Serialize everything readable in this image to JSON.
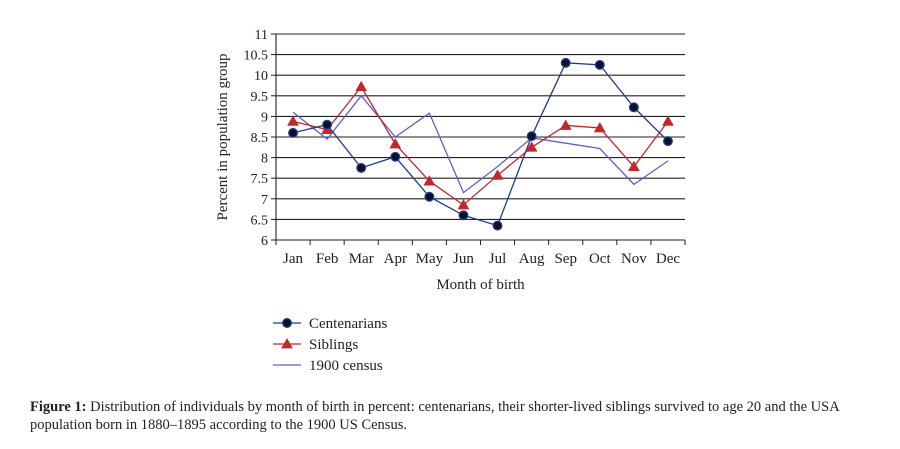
{
  "chart_data": {
    "type": "line",
    "xlabel": "Month of birth",
    "ylabel": "Percent in population group",
    "categories": [
      "Jan",
      "Feb",
      "Mar",
      "Apr",
      "May",
      "Jun",
      "Jul",
      "Aug",
      "Sep",
      "Oct",
      "Nov",
      "Dec"
    ],
    "ylim": [
      6,
      11
    ],
    "yticks": [
      "6",
      "6.5",
      "7",
      "7.5",
      "8",
      "8.5",
      "9",
      "9.5",
      "10",
      "10.5",
      "11"
    ],
    "grid": "horizontal",
    "legend_position": "bottom-left",
    "series": [
      {
        "name": "Centenarians",
        "marker": "circle",
        "color": "#1f3b8c",
        "values": [
          8.6,
          8.8,
          7.75,
          8.02,
          7.05,
          6.6,
          6.35,
          8.52,
          10.3,
          10.25,
          9.22,
          8.4
        ]
      },
      {
        "name": "Siblings",
        "marker": "triangle",
        "color": "#c0282d",
        "values": [
          8.88,
          8.68,
          9.72,
          8.33,
          7.43,
          6.85,
          7.57,
          8.25,
          8.78,
          8.72,
          7.78,
          8.88
        ]
      },
      {
        "name": "1900 census",
        "marker": "none",
        "color": "#6a5acd",
        "values": [
          9.1,
          8.45,
          9.5,
          8.5,
          9.08,
          7.15,
          7.78,
          8.48,
          8.35,
          8.22,
          7.35,
          7.92
        ]
      }
    ]
  },
  "caption": {
    "label": "Figure 1:",
    "text": " Distribution of individuals by month of birth in percent: centenarians, their shorter-lived siblings survived to age 20 and the USA population born in 1880–1895 according to the 1900 US Census."
  }
}
